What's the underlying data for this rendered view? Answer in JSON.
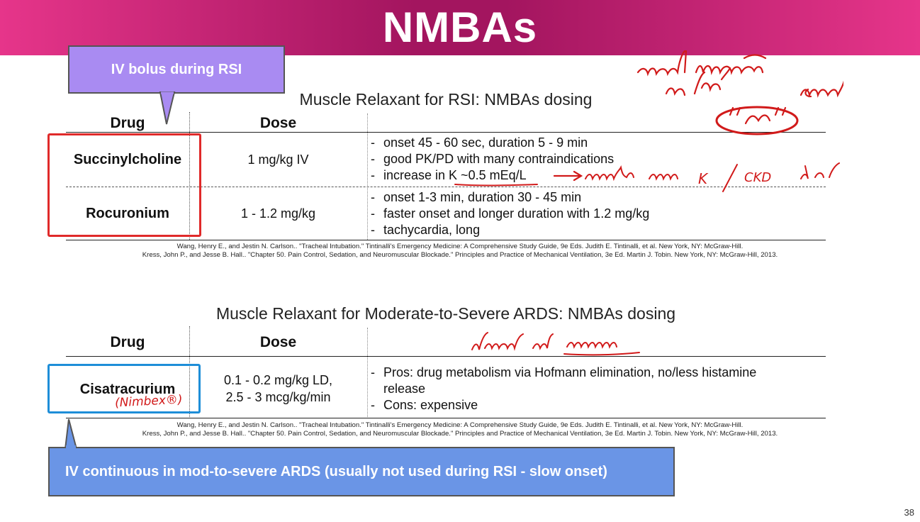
{
  "slide": {
    "title": "NMBAs",
    "page_number": "38"
  },
  "callouts": {
    "top": "IV bolus during RSI",
    "bottom": "IV continuous in mod-to-severe ARDS (usually not used during RSI - slow onset)"
  },
  "table1": {
    "title": "Muscle Relaxant for RSI: NMBAs dosing",
    "col_drug": "Drug",
    "col_dose": "Dose",
    "rows": [
      {
        "drug": "Succinylcholine",
        "dose": "1 mg/kg IV",
        "notes": [
          "onset 45 - 60 sec, duration 5 - 9 min",
          "good PK/PD with many contraindications",
          "increase in K ~0.5 mEq/L"
        ]
      },
      {
        "drug": "Rocuronium",
        "dose": "1 - 1.2 mg/kg",
        "notes": [
          "onset 1-3 min, duration 30 - 45 min",
          "faster onset and longer duration with 1.2 mg/kg",
          "tachycardia, long"
        ]
      }
    ],
    "refs": [
      "Wang, Henry E., and Jestin N. Carlson.. \"Tracheal Intubation.\" Tintinalli's Emergency Medicine: A Comprehensive Study Guide, 9e Eds. Judith E. Tintinalli, et al. New York, NY: McGraw-Hill.",
      "Kress, John P., and Jesse B. Hall.. \"Chapter 50. Pain Control, Sedation, and Neuromuscular Blockade.\" Principles and Practice of Mechanical Ventilation, 3e Ed. Martin J. Tobin. New York, NY: McGraw-Hill, 2013."
    ]
  },
  "table2": {
    "title": "Muscle Relaxant for Moderate-to-Severe ARDS: NMBAs dosing",
    "col_drug": "Drug",
    "col_dose": "Dose",
    "rows": [
      {
        "drug": "Cisatracurium",
        "dose_line1": "0.1 - 0.2 mg/kg LD,",
        "dose_line2": "2.5 - 3 mcg/kg/min",
        "notes": [
          "Pros: drug metabolism via Hofmann elimination, no/less histamine release",
          "Cons: expensive"
        ]
      }
    ],
    "refs": [
      "Wang, Henry E., and Jestin N. Carlson.. \"Tracheal Intubation.\" Tintinalli's Emergency Medicine: A Comprehensive Study Guide, 9e Eds. Judith E. Tintinalli, et al. New York, NY: McGraw-Hill.",
      "Kress, John P., and Jesse B. Hall.. \"Chapter 50. Pain Control, Sedation, and Neuromuscular Blockade.\" Principles and Practice of Mechanical Ventilation, 3e Ed. Martin J. Tobin. New York, NY: McGraw-Hill, 2013."
    ]
  },
  "handwriting": {
    "k_note_left": "K",
    "k_note_right": "CKD",
    "nimbex": "(Nimbex®)"
  },
  "colors": {
    "header_pink": "#e6358a",
    "header_magenta": "#a3155f",
    "callout_top": "#a98bf2",
    "callout_bottom": "#6a95e6",
    "annotation_red": "#e02a2a",
    "annotation_blue": "#1e8ed8"
  }
}
